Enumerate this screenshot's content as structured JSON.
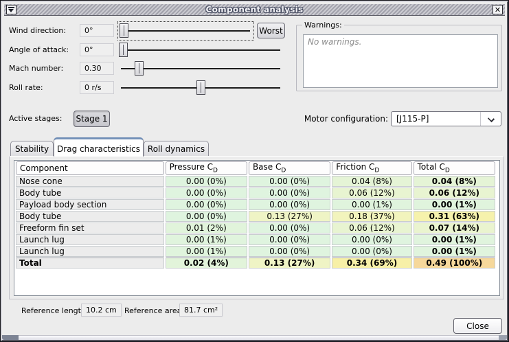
{
  "window": {
    "title": "Component analysis"
  },
  "icons": {
    "close_glyph": "✕"
  },
  "controls": {
    "rows": [
      {
        "label": "Wind direction:",
        "value": "0°",
        "slider_pct": 0,
        "focused": true
      },
      {
        "label": "Angle of attack:",
        "value": "0°",
        "slider_pct": 0,
        "focused": false
      },
      {
        "label": "Mach number:",
        "value": "0.30",
        "slider_pct": 10,
        "focused": false
      },
      {
        "label": "Roll rate:",
        "value": "0 r/s",
        "slider_pct": 50,
        "focused": false
      }
    ],
    "worst_button": "Worst"
  },
  "warnings": {
    "title": "Warnings:",
    "text": "No warnings."
  },
  "stages": {
    "label": "Active stages:",
    "stage_button": "Stage 1",
    "stage_selected": true
  },
  "motor": {
    "label": "Motor configuration:",
    "selected_value": "[J115-P]"
  },
  "tabs": {
    "items": [
      "Stability",
      "Drag characteristics",
      "Roll dynamics"
    ],
    "active": "Drag characteristics"
  },
  "table": {
    "headers": [
      {
        "text": "Component",
        "sub": ""
      },
      {
        "text": "Pressure C",
        "sub": "D"
      },
      {
        "text": "Base C",
        "sub": "D"
      },
      {
        "text": "Friction C",
        "sub": "D"
      },
      {
        "text": "Total C",
        "sub": "D"
      }
    ],
    "rows": [
      {
        "component": "Nose cone",
        "bold": false,
        "cells": [
          {
            "t": "0.00 (0%)",
            "bg": "#dff4df",
            "b": false
          },
          {
            "t": "0.00 (0%)",
            "bg": "#dff4df",
            "b": false
          },
          {
            "t": "0.04 (8%)",
            "bg": "#e5f4d6",
            "b": false
          },
          {
            "t": "0.04 (8%)",
            "bg": "#e5f4d6",
            "b": true
          }
        ]
      },
      {
        "component": "Body tube",
        "bold": false,
        "cells": [
          {
            "t": "0.00 (0%)",
            "bg": "#dff4df",
            "b": false
          },
          {
            "t": "0.00 (0%)",
            "bg": "#dff4df",
            "b": false
          },
          {
            "t": "0.06 (12%)",
            "bg": "#e8f4d1",
            "b": false
          },
          {
            "t": "0.06 (12%)",
            "bg": "#e8f4d1",
            "b": true
          }
        ]
      },
      {
        "component": "Payload body section",
        "bold": false,
        "cells": [
          {
            "t": "0.00 (0%)",
            "bg": "#dff4df",
            "b": false
          },
          {
            "t": "0.00 (0%)",
            "bg": "#dff4df",
            "b": false
          },
          {
            "t": "0.00 (1%)",
            "bg": "#e0f4dd",
            "b": false
          },
          {
            "t": "0.00 (1%)",
            "bg": "#e0f4dd",
            "b": true
          }
        ]
      },
      {
        "component": "Body tube",
        "bold": false,
        "cells": [
          {
            "t": "0.00 (0%)",
            "bg": "#dff4df",
            "b": false
          },
          {
            "t": "0.13 (27%)",
            "bg": "#eff4c5",
            "b": false
          },
          {
            "t": "0.18 (37%)",
            "bg": "#f2f4bd",
            "b": false
          },
          {
            "t": "0.31 (63%)",
            "bg": "#f6f2ac",
            "b": true
          }
        ]
      },
      {
        "component": "Freeform fin set",
        "bold": false,
        "cells": [
          {
            "t": "0.01 (2%)",
            "bg": "#e1f4db",
            "b": false
          },
          {
            "t": "0.00 (0%)",
            "bg": "#dff4df",
            "b": false
          },
          {
            "t": "0.06 (12%)",
            "bg": "#e8f4d1",
            "b": false
          },
          {
            "t": "0.07 (14%)",
            "bg": "#eaf4cf",
            "b": true
          }
        ]
      },
      {
        "component": "Launch lug",
        "bold": false,
        "cells": [
          {
            "t": "0.00 (1%)",
            "bg": "#e0f4dd",
            "b": false
          },
          {
            "t": "0.00 (0%)",
            "bg": "#dff4df",
            "b": false
          },
          {
            "t": "0.00 (0%)",
            "bg": "#dff4df",
            "b": false
          },
          {
            "t": "0.00 (1%)",
            "bg": "#e0f4dd",
            "b": true
          }
        ]
      },
      {
        "component": "Launch lug",
        "bold": false,
        "cells": [
          {
            "t": "0.00 (1%)",
            "bg": "#e0f4dd",
            "b": false
          },
          {
            "t": "0.00 (0%)",
            "bg": "#dff4df",
            "b": false
          },
          {
            "t": "0.00 (0%)",
            "bg": "#dff4df",
            "b": false
          },
          {
            "t": "0.00 (1%)",
            "bg": "#e0f4dd",
            "b": true
          }
        ]
      },
      {
        "component": "Total",
        "bold": true,
        "cells": [
          {
            "t": "0.02 (4%)",
            "bg": "#e2f4da",
            "b": true
          },
          {
            "t": "0.13 (27%)",
            "bg": "#eff4c5",
            "b": true
          },
          {
            "t": "0.34 (69%)",
            "bg": "#f7f0a7",
            "b": true
          },
          {
            "t": "0.49 (100%)",
            "bg": "#f6d89b",
            "b": true
          }
        ]
      }
    ]
  },
  "footer": {
    "ref_length_label": "Reference length:",
    "ref_length_value": "10.2 cm",
    "ref_area_label": "Reference area:",
    "ref_area_value": "81.7 cm²"
  },
  "buttons": {
    "close": "Close"
  },
  "colors": {
    "tab_accent": "#7390b8",
    "heat_low": "#dff4df",
    "heat_mid": "#f6f2ac",
    "heat_high": "#f6d89b"
  }
}
